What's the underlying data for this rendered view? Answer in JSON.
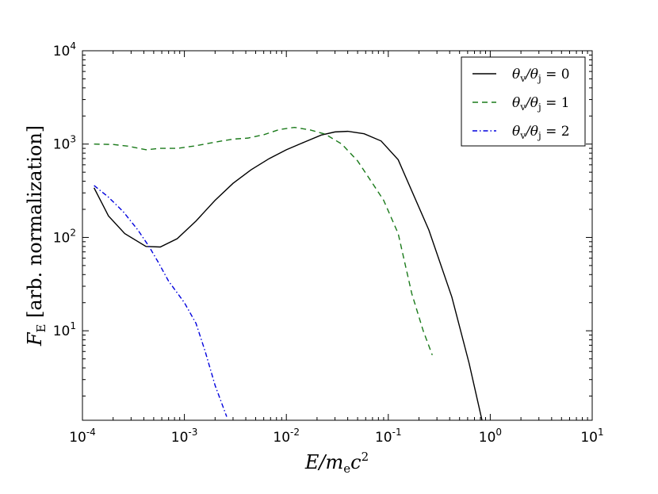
{
  "chart_data": {
    "type": "line",
    "xscale": "log",
    "yscale": "log",
    "xlim": [
      0.0001,
      10
    ],
    "ylim": [
      1.1,
      10000
    ],
    "grid": false,
    "legend_position": "top-right",
    "xlabel": "E/m_e c^2",
    "ylabel": "F_E [arb. normalization]",
    "x_ticks": [
      {
        "base": "10",
        "exp": "-4",
        "value": 0.0001
      },
      {
        "base": "10",
        "exp": "-3",
        "value": 0.001
      },
      {
        "base": "10",
        "exp": "-2",
        "value": 0.01
      },
      {
        "base": "10",
        "exp": "-1",
        "value": 0.1
      },
      {
        "base": "10",
        "exp": "0",
        "value": 1
      },
      {
        "base": "10",
        "exp": "1",
        "value": 10
      }
    ],
    "y_ticks": [
      {
        "base": "10",
        "exp": "1",
        "value": 10
      },
      {
        "base": "10",
        "exp": "2",
        "value": 100
      },
      {
        "base": "10",
        "exp": "3",
        "value": 1000
      },
      {
        "base": "10",
        "exp": "4",
        "value": 10000
      }
    ],
    "series": [
      {
        "name": "θv/θj = 0",
        "color": "#000000",
        "dash": "solid",
        "x": [
          0.00013,
          0.00018,
          0.00026,
          0.00042,
          0.00058,
          0.00085,
          0.0013,
          0.002,
          0.003,
          0.0045,
          0.0068,
          0.01,
          0.015,
          0.022,
          0.03,
          0.04,
          0.058,
          0.085,
          0.125,
          0.25,
          0.42,
          0.62,
          0.83
        ],
        "y": [
          340,
          170,
          110,
          80,
          79,
          97,
          150,
          250,
          380,
          530,
          700,
          870,
          1050,
          1250,
          1350,
          1370,
          1290,
          1080,
          680,
          120,
          23,
          4.5,
          1.1
        ]
      },
      {
        "name": "θv/θj = 1",
        "color": "#1a7a1a",
        "dash": "dashed",
        "x": [
          0.00013,
          0.0002,
          0.00028,
          0.00042,
          0.00058,
          0.00085,
          0.0013,
          0.002,
          0.003,
          0.0042,
          0.006,
          0.0085,
          0.012,
          0.017,
          0.024,
          0.035,
          0.05,
          0.07,
          0.09,
          0.125,
          0.17,
          0.22,
          0.27
        ],
        "y": [
          1000,
          990,
          950,
          870,
          900,
          900,
          960,
          1050,
          1130,
          1160,
          1260,
          1430,
          1510,
          1420,
          1280,
          1000,
          660,
          380,
          250,
          110,
          25,
          10,
          5.5
        ]
      },
      {
        "name": "θv/θj = 2",
        "color": "#0000dd",
        "dash": "dashdot",
        "x": [
          0.00013,
          0.00018,
          0.00025,
          0.00035,
          0.00045,
          0.00055,
          0.0007,
          0.001,
          0.0013,
          0.0016,
          0.002,
          0.0026
        ],
        "y": [
          360,
          270,
          190,
          120,
          80,
          55,
          34,
          20,
          12,
          6,
          2.6,
          1.2
        ]
      }
    ]
  },
  "legend": {
    "items": [
      {
        "label": "θ",
        "sub1": "v",
        "sep": "/θ",
        "sub2": "j",
        "tail": " = 0"
      },
      {
        "label": "θ",
        "sub1": "v",
        "sep": "/θ",
        "sub2": "j",
        "tail": " = 1"
      },
      {
        "label": "θ",
        "sub1": "v",
        "sep": "/θ",
        "sub2": "j",
        "tail": " = 2"
      }
    ]
  },
  "axis_titles": {
    "x": {
      "main": "E/m",
      "sub": "e",
      "mid": "c",
      "sup": "2"
    },
    "y": {
      "main": "F",
      "sub": "E",
      "rest": " [arb. normalization]"
    }
  }
}
